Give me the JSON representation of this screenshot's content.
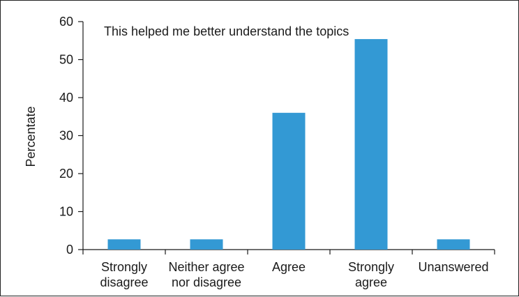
{
  "chart_data": {
    "type": "bar",
    "title": "This helped me better understand the topics",
    "xlabel": "",
    "ylabel": "Percentate",
    "ylim": [
      0,
      60
    ],
    "yticks": [
      0,
      10,
      20,
      30,
      40,
      50,
      60
    ],
    "grid": false,
    "legend": "none",
    "bar_color": "#3399d4",
    "categories": [
      [
        "Strongly",
        "disagree"
      ],
      [
        "Neither agree",
        "nor disagree"
      ],
      [
        "Agree"
      ],
      [
        "Strongly",
        "agree"
      ],
      [
        "Unanswered"
      ]
    ],
    "values": [
      2.7,
      2.7,
      36,
      55.4,
      2.7
    ]
  }
}
